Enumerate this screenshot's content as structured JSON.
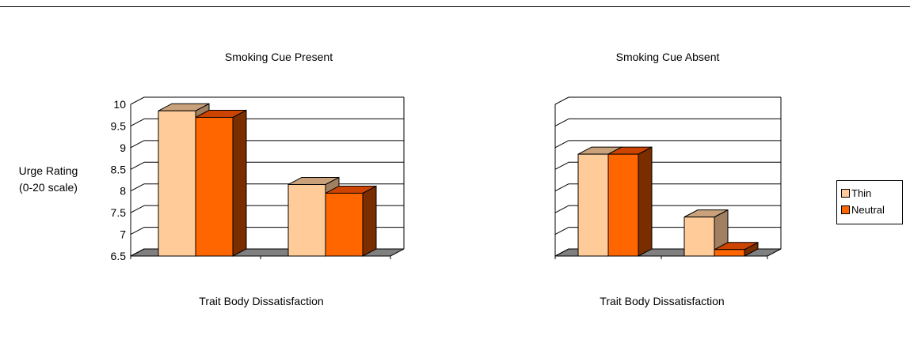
{
  "chart_data": [
    {
      "type": "bar",
      "view": "3d",
      "title": "Smoking Cue Present",
      "xlabel": "Trait Body Dissatisfaction",
      "ylabel": "Urge Rating (0-20 scale)",
      "ylim": [
        6.5,
        10
      ],
      "yticks": [
        "6.5",
        "7",
        "7.5",
        "8",
        "8.5",
        "9",
        "9.5",
        "10"
      ],
      "categories": [
        "",
        ""
      ],
      "series": [
        {
          "name": "Thin",
          "values": [
            9.85,
            8.15
          ]
        },
        {
          "name": "Neutral",
          "values": [
            9.7,
            7.95
          ]
        }
      ],
      "grid": true
    },
    {
      "type": "bar",
      "view": "3d",
      "title": "Smoking Cue Absent",
      "xlabel": "Trait Body Dissatisfaction",
      "ylim": [
        6.5,
        10
      ],
      "yticks": [],
      "categories": [
        "",
        ""
      ],
      "series": [
        {
          "name": "Thin",
          "values": [
            8.85,
            7.4
          ]
        },
        {
          "name": "Neutral",
          "values": [
            8.85,
            6.65
          ]
        }
      ],
      "grid": true
    }
  ],
  "ylabel_lines": [
    "Urge Rating",
    "(0-20 scale)"
  ],
  "legend": {
    "position": "right",
    "items": [
      {
        "label": "Thin",
        "color": "#FFCC99"
      },
      {
        "label": "Neutral",
        "color": "#FF6600"
      }
    ]
  },
  "colors": {
    "thin_front": "#FFCC99",
    "thin_top": "#C9A27B",
    "thin_side": "#A08060",
    "neutral_front": "#FF6600",
    "neutral_top": "#CC4400",
    "neutral_side": "#7A2E00",
    "floor": "#808080"
  }
}
